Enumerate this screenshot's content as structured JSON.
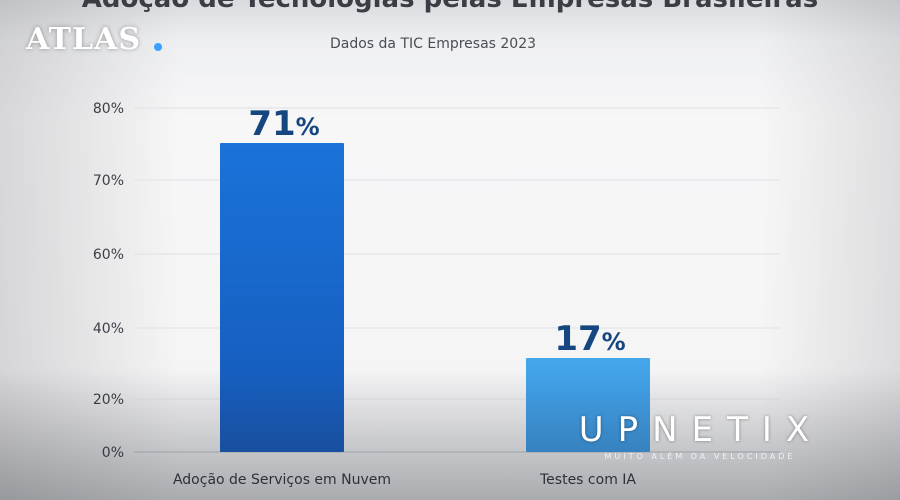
{
  "brand": {
    "atlas": "ATLAS",
    "upnetix": "UPNETIX",
    "upnetix_tagline": "MUITO ALÉM DA VELOCIDADE"
  },
  "colors": {
    "bar_primary": "#1a73d9",
    "bar_secondary": "#45a6ec",
    "label": "#16467f",
    "atlas_dot": "#3aa0ff"
  },
  "chart_data": {
    "type": "bar",
    "title": "Adoção de Tecnologias pelas Empresas Brasileiras",
    "subtitle": "Dados da TIC Empresas 2023",
    "categories": [
      "Adoção de Serviços em Nuvem",
      "Testes com IA"
    ],
    "values": [
      71,
      17
    ],
    "data_labels": [
      "71%",
      "17%"
    ],
    "yticks": [
      "0%",
      "20%",
      "40%",
      "60%",
      "70%",
      "80%"
    ],
    "ylim": [
      0,
      80
    ],
    "grid": true,
    "xlabel": "",
    "ylabel": ""
  }
}
